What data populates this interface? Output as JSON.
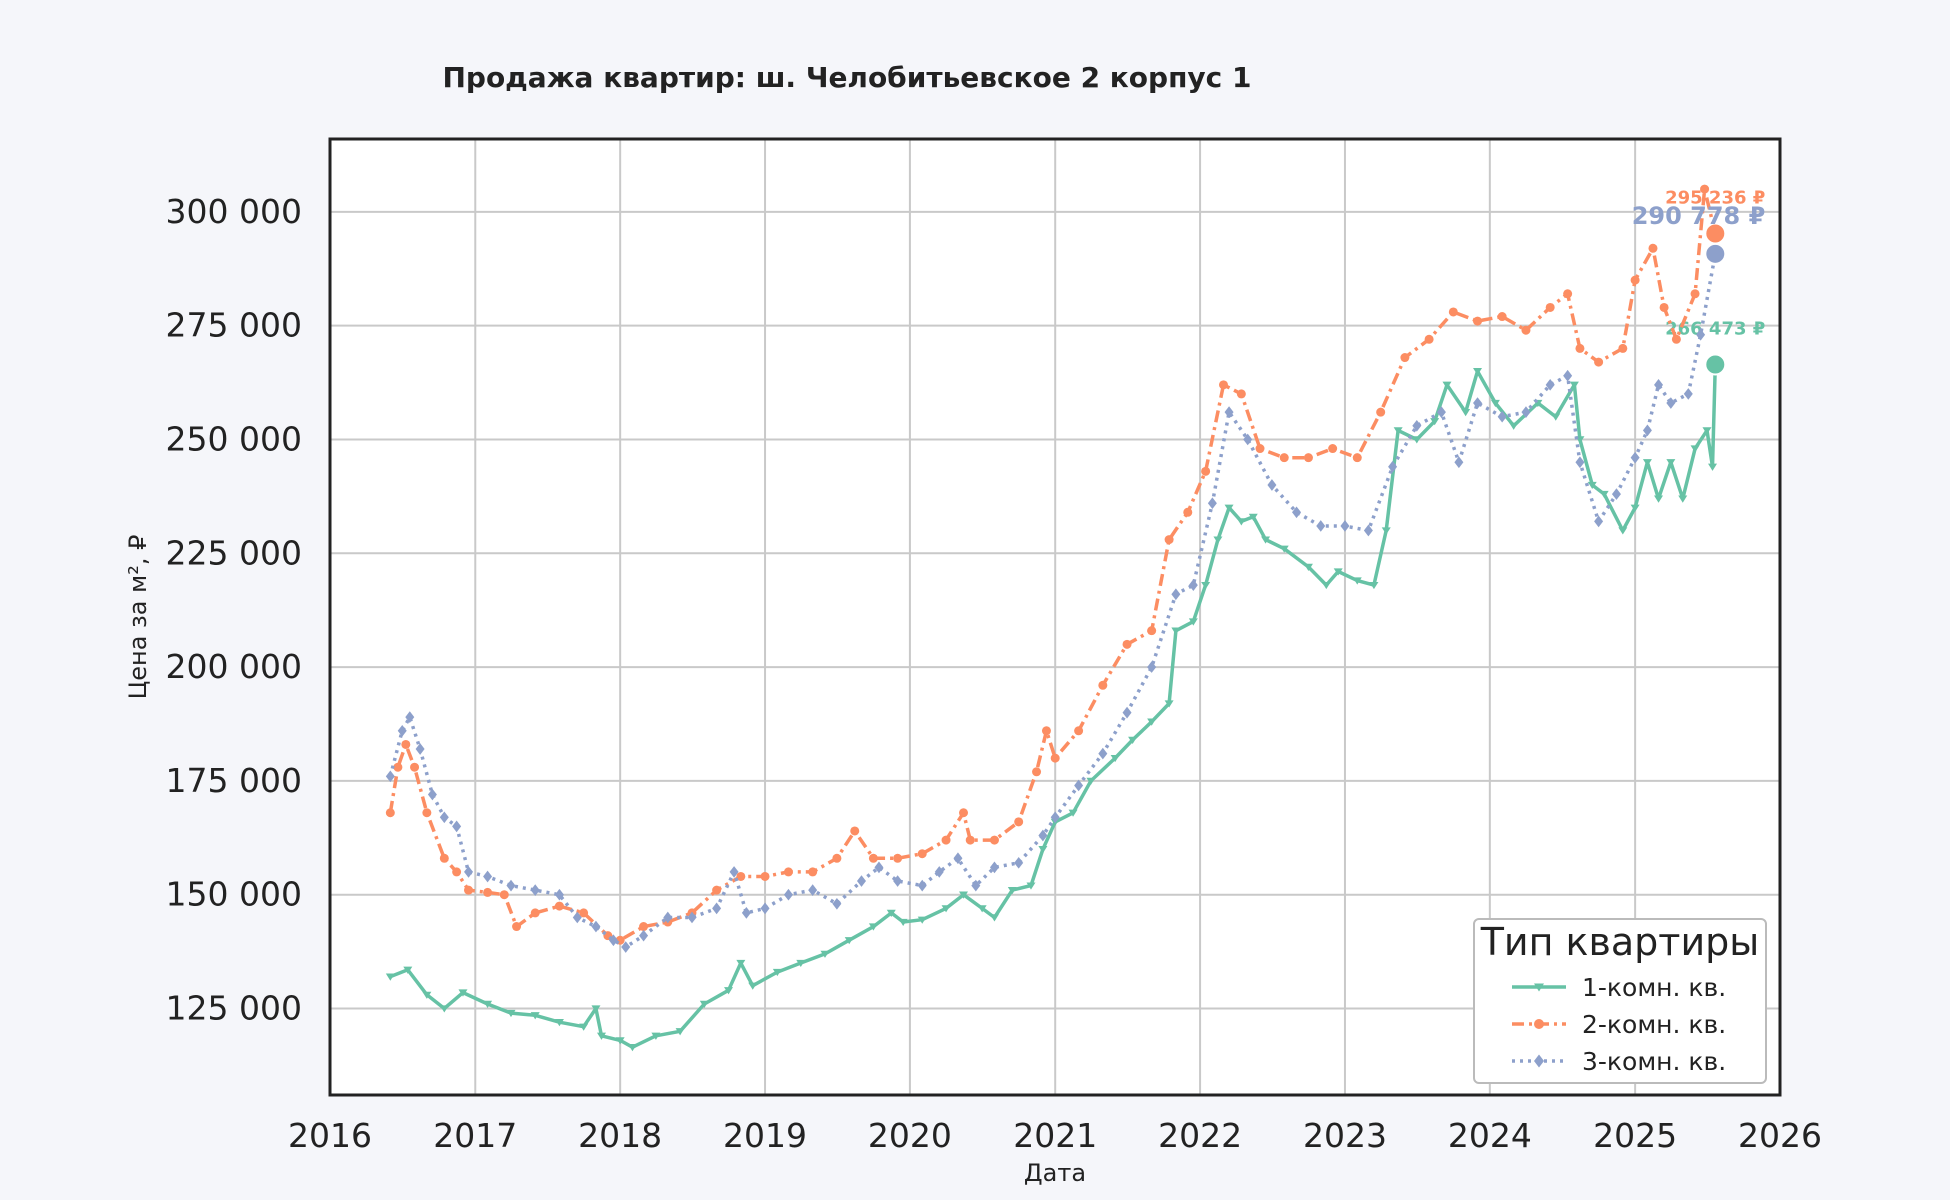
{
  "chart_data": {
    "type": "line",
    "title": "Продажа квартир: ш. Челобитьевское 2 корпус 1",
    "xlabel": "Дата",
    "ylabel": "Цена за м², ₽",
    "xlim": [
      "2016-01-01",
      "2026-01-01"
    ],
    "ylim": [
      106000,
      316000
    ],
    "grid": true,
    "x_ticks": [
      "2016",
      "2017",
      "2018",
      "2019",
      "2020",
      "2021",
      "2022",
      "2023",
      "2024",
      "2025",
      "2026"
    ],
    "y_ticks": [
      125000,
      150000,
      175000,
      200000,
      225000,
      250000,
      275000,
      300000
    ],
    "y_tick_labels": [
      "125 000",
      "150 000",
      "175 000",
      "200 000",
      "225 000",
      "250 000",
      "275 000",
      "300 000"
    ],
    "legend": {
      "title": "Тип квартиры",
      "placement": "lower-right"
    },
    "series": [
      {
        "name": "1-комн. кв.",
        "color": "#66c2a5",
        "marker": "triangle-down",
        "line_style": "solid",
        "last_label": "266 473 ₽",
        "points": [
          [
            "2016-06-01",
            132000
          ],
          [
            "2016-07-15",
            133500
          ],
          [
            "2016-09-01",
            128000
          ],
          [
            "2016-10-15",
            125000
          ],
          [
            "2016-12-01",
            128500
          ],
          [
            "2017-02-01",
            126000
          ],
          [
            "2017-04-01",
            124000
          ],
          [
            "2017-06-01",
            123500
          ],
          [
            "2017-08-01",
            122000
          ],
          [
            "2017-10-01",
            121000
          ],
          [
            "2017-11-01",
            125000
          ],
          [
            "2017-11-15",
            119000
          ],
          [
            "2018-01-01",
            118000
          ],
          [
            "2018-02-01",
            116500
          ],
          [
            "2018-04-01",
            119000
          ],
          [
            "2018-06-01",
            120000
          ],
          [
            "2018-08-01",
            126000
          ],
          [
            "2018-10-01",
            129000
          ],
          [
            "2018-11-01",
            135000
          ],
          [
            "2018-12-01",
            130000
          ],
          [
            "2019-02-01",
            133000
          ],
          [
            "2019-04-01",
            135000
          ],
          [
            "2019-06-01",
            137000
          ],
          [
            "2019-08-01",
            140000
          ],
          [
            "2019-10-01",
            143000
          ],
          [
            "2019-11-15",
            146000
          ],
          [
            "2019-12-15",
            144000
          ],
          [
            "2020-02-01",
            144500
          ],
          [
            "2020-04-01",
            147000
          ],
          [
            "2020-05-15",
            150000
          ],
          [
            "2020-07-01",
            147000
          ],
          [
            "2020-08-01",
            145000
          ],
          [
            "2020-09-15",
            151000
          ],
          [
            "2020-11-01",
            152000
          ],
          [
            "2020-12-01",
            160000
          ],
          [
            "2021-01-01",
            166000
          ],
          [
            "2021-02-15",
            168000
          ],
          [
            "2021-04-01",
            175000
          ],
          [
            "2021-06-01",
            180000
          ],
          [
            "2021-07-15",
            184000
          ],
          [
            "2021-09-01",
            188000
          ],
          [
            "2021-10-15",
            192000
          ],
          [
            "2021-11-01",
            208000
          ],
          [
            "2021-12-15",
            210000
          ],
          [
            "2022-01-15",
            218000
          ],
          [
            "2022-02-15",
            228000
          ],
          [
            "2022-03-15",
            235000
          ],
          [
            "2022-04-15",
            232000
          ],
          [
            "2022-05-15",
            233000
          ],
          [
            "2022-06-15",
            228000
          ],
          [
            "2022-08-01",
            226000
          ],
          [
            "2022-10-01",
            222000
          ],
          [
            "2022-11-15",
            218000
          ],
          [
            "2022-12-15",
            221000
          ],
          [
            "2023-02-01",
            219000
          ],
          [
            "2023-03-15",
            218000
          ],
          [
            "2023-04-15",
            230000
          ],
          [
            "2023-05-15",
            252000
          ],
          [
            "2023-07-01",
            250000
          ],
          [
            "2023-08-15",
            254000
          ],
          [
            "2023-09-15",
            262000
          ],
          [
            "2023-11-01",
            256000
          ],
          [
            "2023-12-01",
            265000
          ],
          [
            "2024-01-15",
            258000
          ],
          [
            "2024-03-01",
            253000
          ],
          [
            "2024-05-01",
            258000
          ],
          [
            "2024-06-15",
            255000
          ],
          [
            "2024-08-01",
            262000
          ],
          [
            "2024-08-15",
            250000
          ],
          [
            "2024-09-15",
            240000
          ],
          [
            "2024-10-15",
            238000
          ],
          [
            "2024-12-01",
            230000
          ],
          [
            "2025-01-01",
            235000
          ],
          [
            "2025-02-01",
            245000
          ],
          [
            "2025-03-01",
            237000
          ],
          [
            "2025-04-01",
            245000
          ],
          [
            "2025-05-01",
            237000
          ],
          [
            "2025-06-01",
            248000
          ],
          [
            "2025-07-01",
            252000
          ],
          [
            "2025-07-15",
            244000
          ],
          [
            "2025-07-22",
            266473
          ]
        ]
      },
      {
        "name": "2-комн. кв.",
        "color": "#fc8d62",
        "marker": "circle",
        "line_style": "dash-dot",
        "last_label": "295 236 ₽",
        "points": [
          [
            "2016-06-01",
            168000
          ],
          [
            "2016-06-20",
            178000
          ],
          [
            "2016-07-10",
            183000
          ],
          [
            "2016-08-01",
            178000
          ],
          [
            "2016-09-01",
            168000
          ],
          [
            "2016-10-15",
            158000
          ],
          [
            "2016-11-15",
            155000
          ],
          [
            "2016-12-15",
            151000
          ],
          [
            "2017-02-01",
            150500
          ],
          [
            "2017-03-15",
            150000
          ],
          [
            "2017-04-15",
            143000
          ],
          [
            "2017-06-01",
            146000
          ],
          [
            "2017-08-01",
            147500
          ],
          [
            "2017-10-01",
            146000
          ],
          [
            "2017-12-01",
            141000
          ],
          [
            "2018-01-01",
            140000
          ],
          [
            "2018-03-01",
            143000
          ],
          [
            "2018-05-01",
            144000
          ],
          [
            "2018-07-01",
            146000
          ],
          [
            "2018-09-01",
            151000
          ],
          [
            "2018-11-01",
            154000
          ],
          [
            "2019-01-01",
            154000
          ],
          [
            "2019-03-01",
            155000
          ],
          [
            "2019-05-01",
            155000
          ],
          [
            "2019-07-01",
            158000
          ],
          [
            "2019-08-15",
            164000
          ],
          [
            "2019-10-01",
            158000
          ],
          [
            "2019-12-01",
            158000
          ],
          [
            "2020-02-01",
            159000
          ],
          [
            "2020-04-01",
            162000
          ],
          [
            "2020-05-15",
            168000
          ],
          [
            "2020-06-01",
            162000
          ],
          [
            "2020-08-01",
            162000
          ],
          [
            "2020-10-01",
            166000
          ],
          [
            "2020-11-15",
            177000
          ],
          [
            "2020-12-10",
            186000
          ],
          [
            "2021-01-01",
            180000
          ],
          [
            "2021-03-01",
            186000
          ],
          [
            "2021-05-01",
            196000
          ],
          [
            "2021-07-01",
            205000
          ],
          [
            "2021-09-01",
            208000
          ],
          [
            "2021-10-15",
            228000
          ],
          [
            "2021-12-01",
            234000
          ],
          [
            "2022-01-15",
            243000
          ],
          [
            "2022-03-01",
            262000
          ],
          [
            "2022-04-15",
            260000
          ],
          [
            "2022-06-01",
            248000
          ],
          [
            "2022-08-01",
            246000
          ],
          [
            "2022-10-01",
            246000
          ],
          [
            "2022-12-01",
            248000
          ],
          [
            "2023-02-01",
            246000
          ],
          [
            "2023-04-01",
            256000
          ],
          [
            "2023-06-01",
            268000
          ],
          [
            "2023-08-01",
            272000
          ],
          [
            "2023-10-01",
            278000
          ],
          [
            "2023-12-01",
            276000
          ],
          [
            "2024-02-01",
            277000
          ],
          [
            "2024-04-01",
            274000
          ],
          [
            "2024-06-01",
            279000
          ],
          [
            "2024-07-15",
            282000
          ],
          [
            "2024-08-15",
            270000
          ],
          [
            "2024-10-01",
            267000
          ],
          [
            "2024-12-01",
            270000
          ],
          [
            "2025-01-01",
            285000
          ],
          [
            "2025-02-15",
            292000
          ],
          [
            "2025-03-15",
            279000
          ],
          [
            "2025-04-15",
            272000
          ],
          [
            "2025-06-01",
            282000
          ],
          [
            "2025-06-25",
            305000
          ],
          [
            "2025-07-22",
            295236
          ]
        ]
      },
      {
        "name": "3-комн. кв.",
        "color": "#8da0cb",
        "marker": "diamond",
        "line_style": "dotted",
        "last_label": "290 778 ₽",
        "points": [
          [
            "2016-06-01",
            176000
          ],
          [
            "2016-07-01",
            186000
          ],
          [
            "2016-07-20",
            189000
          ],
          [
            "2016-08-15",
            182000
          ],
          [
            "2016-09-15",
            172000
          ],
          [
            "2016-10-15",
            167000
          ],
          [
            "2016-11-15",
            165000
          ],
          [
            "2016-12-15",
            155000
          ],
          [
            "2017-02-01",
            154000
          ],
          [
            "2017-04-01",
            152000
          ],
          [
            "2017-06-01",
            151000
          ],
          [
            "2017-08-01",
            150000
          ],
          [
            "2017-09-15",
            145000
          ],
          [
            "2017-11-01",
            143000
          ],
          [
            "2017-12-15",
            140000
          ],
          [
            "2018-01-15",
            138500
          ],
          [
            "2018-03-01",
            141000
          ],
          [
            "2018-05-01",
            145000
          ],
          [
            "2018-07-01",
            145000
          ],
          [
            "2018-09-01",
            147000
          ],
          [
            "2018-10-15",
            155000
          ],
          [
            "2018-11-15",
            146000
          ],
          [
            "2019-01-01",
            147000
          ],
          [
            "2019-03-01",
            150000
          ],
          [
            "2019-05-01",
            151000
          ],
          [
            "2019-07-01",
            148000
          ],
          [
            "2019-09-01",
            153000
          ],
          [
            "2019-10-15",
            156000
          ],
          [
            "2019-12-01",
            153000
          ],
          [
            "2020-02-01",
            152000
          ],
          [
            "2020-03-15",
            155000
          ],
          [
            "2020-05-01",
            158000
          ],
          [
            "2020-06-15",
            152000
          ],
          [
            "2020-08-01",
            156000
          ],
          [
            "2020-10-01",
            157000
          ],
          [
            "2020-12-01",
            163000
          ],
          [
            "2021-01-01",
            167000
          ],
          [
            "2021-03-01",
            174000
          ],
          [
            "2021-05-01",
            181000
          ],
          [
            "2021-07-01",
            190000
          ],
          [
            "2021-09-01",
            200000
          ],
          [
            "2021-11-01",
            216000
          ],
          [
            "2021-12-15",
            218000
          ],
          [
            "2022-02-01",
            236000
          ],
          [
            "2022-03-15",
            256000
          ],
          [
            "2022-05-01",
            250000
          ],
          [
            "2022-07-01",
            240000
          ],
          [
            "2022-09-01",
            234000
          ],
          [
            "2022-11-01",
            231000
          ],
          [
            "2023-01-01",
            231000
          ],
          [
            "2023-03-01",
            230000
          ],
          [
            "2023-05-01",
            244000
          ],
          [
            "2023-07-01",
            253000
          ],
          [
            "2023-09-01",
            256000
          ],
          [
            "2023-10-15",
            245000
          ],
          [
            "2023-12-01",
            258000
          ],
          [
            "2024-02-01",
            255000
          ],
          [
            "2024-04-01",
            256000
          ],
          [
            "2024-06-01",
            262000
          ],
          [
            "2024-07-15",
            264000
          ],
          [
            "2024-08-15",
            245000
          ],
          [
            "2024-10-01",
            232000
          ],
          [
            "2024-11-15",
            238000
          ],
          [
            "2025-01-01",
            246000
          ],
          [
            "2025-02-01",
            252000
          ],
          [
            "2025-03-01",
            262000
          ],
          [
            "2025-04-01",
            258000
          ],
          [
            "2025-05-15",
            260000
          ],
          [
            "2025-06-15",
            273000
          ],
          [
            "2025-07-22",
            290778
          ]
        ]
      }
    ]
  }
}
